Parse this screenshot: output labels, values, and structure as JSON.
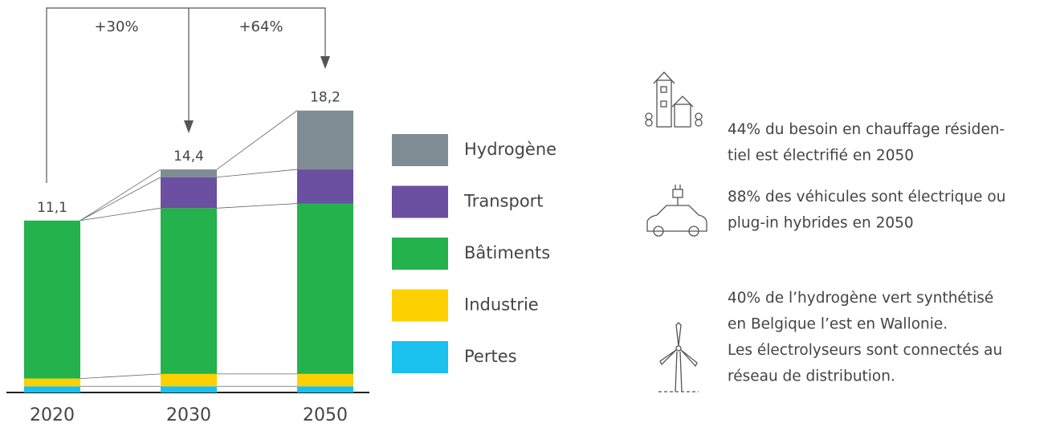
{
  "chart_data": {
    "type": "stacked_bar",
    "categories": [
      "2020",
      "2030",
      "2050"
    ],
    "series": [
      {
        "name": "Pertes",
        "color": "#1ac0ee",
        "values": [
          0.4,
          0.4,
          0.4
        ]
      },
      {
        "name": "Industrie",
        "color": "#fdd000",
        "values": [
          0.5,
          0.8,
          0.8
        ]
      },
      {
        "name": "Bâtiments",
        "color": "#23b24b",
        "values": [
          10.2,
          10.7,
          11.0
        ]
      },
      {
        "name": "Transport",
        "color": "#6b4fa0",
        "values": [
          0,
          2.0,
          2.2
        ]
      },
      {
        "name": "Hydrogène",
        "color": "#7f8c93",
        "values": [
          0,
          0.5,
          3.8
        ]
      }
    ],
    "totals": [
      11.1,
      14.4,
      18.2
    ],
    "value_labels": [
      "11,1",
      "14,4",
      "18,2"
    ],
    "annotations": [
      "+30%",
      "+64%"
    ],
    "ylim": [
      0,
      20
    ]
  },
  "info": [
    {
      "lines": [
        "44% du besoin en chauffage résiden-",
        "tiel est électrifié en 2050"
      ]
    },
    {
      "lines": [
        "88% des véhicules sont électrique ou",
        "plug-in hybrides en 2050"
      ]
    },
    {
      "lines": [
        "40% de l’hydrogène vert synthétisé",
        "en Belgique l’est en Wallonie.",
        "Les électrolyseurs sont connectés au",
        "réseau de distribution."
      ]
    }
  ]
}
